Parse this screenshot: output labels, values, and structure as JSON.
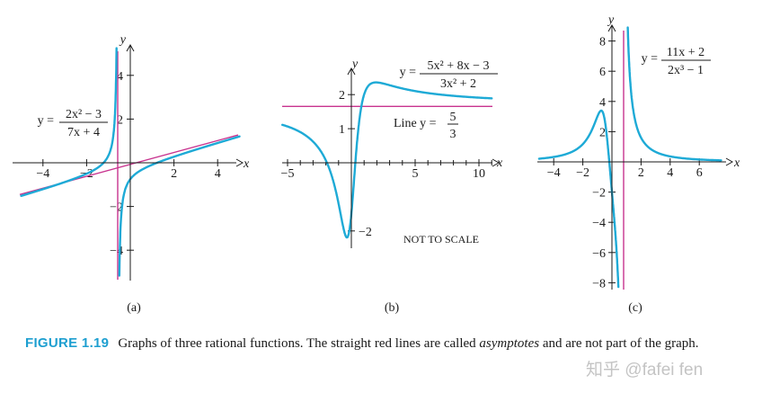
{
  "colors": {
    "curve": "#1eaad6",
    "asymptote": "#c8338f",
    "caption_label": "#1e9fd0",
    "watermark": "#c4c4c4"
  },
  "chart_data": [
    {
      "type": "line",
      "panel_label": "(a)",
      "xlabel": "x",
      "ylabel": "y",
      "xlim": [
        -5,
        5
      ],
      "ylim": [
        -5.5,
        5.8
      ],
      "x_ticks": [
        -4,
        -2,
        2,
        4
      ],
      "y_ticks": [
        4,
        2,
        -2,
        -4
      ],
      "function": {
        "numerator": [
          2,
          0,
          -3
        ],
        "denominator": [
          7,
          4
        ]
      },
      "equation": {
        "lhs": "y =",
        "numerator": "2x² − 3",
        "denominator": "7x + 4"
      },
      "asymptotes": [
        {
          "kind": "vertical",
          "x": -0.5714
        },
        {
          "kind": "oblique",
          "slope": 0.2857,
          "intercept": -0.1633
        }
      ]
    },
    {
      "type": "line",
      "panel_label": "(b)",
      "xlabel": "x",
      "ylabel": "y",
      "xlim": [
        -5.5,
        11
      ],
      "ylim": [
        -3.3,
        3
      ],
      "x_ticks": [
        -5,
        5,
        10
      ],
      "y_ticks": [
        2,
        1,
        -2
      ],
      "function": {
        "numerator": [
          5,
          8,
          -3
        ],
        "denominator": [
          3,
          0,
          2
        ]
      },
      "equation": {
        "lhs": "y =",
        "numerator": "5x² + 8x − 3",
        "denominator": "3x² + 2"
      },
      "asymptotes": [
        {
          "kind": "horizontal",
          "y": 1.6667
        }
      ],
      "annotations": {
        "line_label": "Line y =",
        "line_numerator": "5",
        "line_denominator": "3",
        "scale_note": "NOT TO SCALE"
      }
    },
    {
      "type": "line",
      "panel_label": "(c)",
      "xlabel": "x",
      "ylabel": "y",
      "xlim": [
        -5,
        7.5
      ],
      "ylim": [
        -8.6,
        9
      ],
      "x_ticks": [
        -4,
        -2,
        2,
        4,
        6
      ],
      "y_ticks": [
        8,
        6,
        4,
        2,
        -2,
        -4,
        -6,
        -8
      ],
      "function": {
        "numerator": [
          11,
          2
        ],
        "denominator": [
          2,
          0,
          0,
          -1
        ]
      },
      "equation": {
        "lhs": "y =",
        "numerator": "11x + 2",
        "denominator": "2x³ − 1"
      },
      "asymptotes": [
        {
          "kind": "vertical",
          "x": 0.7937
        }
      ]
    }
  ],
  "caption": {
    "label": "FIGURE 1.19",
    "text_before": "Graphs of three rational functions. The straight red lines are called ",
    "emphasis": "asymptotes",
    "text_after": " and are not part of the graph."
  },
  "watermark": "知乎 @fafei fen"
}
